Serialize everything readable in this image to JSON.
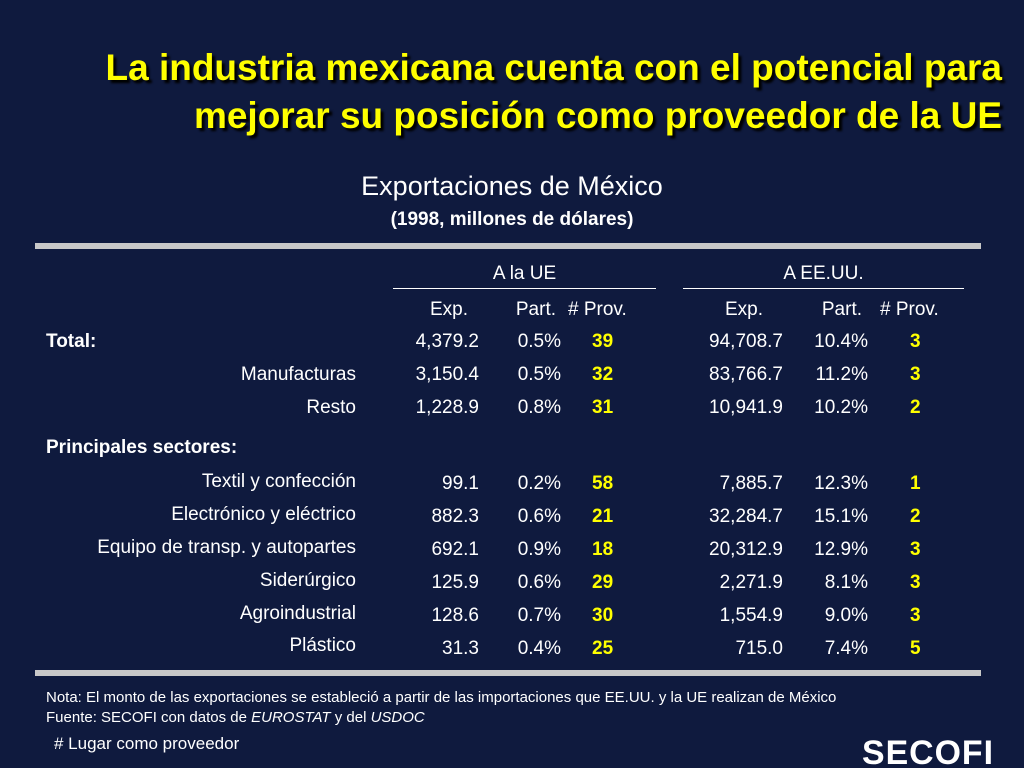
{
  "title": {
    "line1": "La industria mexicana cuenta con el potencial para",
    "line2": "mejorar su posición como proveedor de la UE"
  },
  "subtitle": "Exportaciones de México",
  "subtitle_units": "(1998, millones de dólares)",
  "groups": {
    "ue": "A la UE",
    "eeuu": "A EE.UU."
  },
  "columns": {
    "exp": "Exp.",
    "part": "Part.",
    "prov": "# Prov."
  },
  "sections": {
    "total": "Total:",
    "principales": "Principales sectores:"
  },
  "rows": [
    {
      "label": "Total:",
      "ue_exp": "4,379.2",
      "ue_part": "0.5%",
      "ue_prov": "39",
      "us_exp": "94,708.7",
      "us_part": "10.4%",
      "us_prov": "3"
    },
    {
      "label": "Manufacturas",
      "ue_exp": "3,150.4",
      "ue_part": "0.5%",
      "ue_prov": "32",
      "us_exp": "83,766.7",
      "us_part": "11.2%",
      "us_prov": "3"
    },
    {
      "label": "Resto",
      "ue_exp": "1,228.9",
      "ue_part": "0.8%",
      "ue_prov": "31",
      "us_exp": "10,941.9",
      "us_part": "10.2%",
      "us_prov": "2"
    },
    {
      "label": "Textil y confección",
      "ue_exp": "99.1",
      "ue_part": "0.2%",
      "ue_prov": "58",
      "us_exp": "7,885.7",
      "us_part": "12.3%",
      "us_prov": "1"
    },
    {
      "label": "Electrónico  y eléctrico",
      "ue_exp": "882.3",
      "ue_part": "0.6%",
      "ue_prov": "21",
      "us_exp": "32,284.7",
      "us_part": "15.1%",
      "us_prov": "2"
    },
    {
      "label": "Equipo de transp. y autopartes",
      "ue_exp": "692.1",
      "ue_part": "0.9%",
      "ue_prov": "18",
      "us_exp": "20,312.9",
      "us_part": "12.9%",
      "us_prov": "3"
    },
    {
      "label": "Siderúrgico",
      "ue_exp": "125.9",
      "ue_part": "0.6%",
      "ue_prov": "29",
      "us_exp": "2,271.9",
      "us_part": "8.1%",
      "us_prov": "3"
    },
    {
      "label": "Agroindustrial",
      "ue_exp": "128.6",
      "ue_part": "0.7%",
      "ue_prov": "30",
      "us_exp": "1,554.9",
      "us_part": "9.0%",
      "us_prov": "3"
    },
    {
      "label": "Plástico",
      "ue_exp": "31.3",
      "ue_part": "0.4%",
      "ue_prov": "25",
      "us_exp": "715.0",
      "us_part": "7.4%",
      "us_prov": "5"
    }
  ],
  "notes": {
    "nota": "Nota: El monto de  las exportaciones se estableció a partir de las importaciones que EE.UU. y la UE realizan de México",
    "fuente_prefix": "Fuente: SECOFI con datos de ",
    "fuente_src1": "EUROSTAT",
    "fuente_mid": " y del ",
    "fuente_src2": "USDOC",
    "legend": "# Lugar como proveedor"
  },
  "logo_text": "SECOFI",
  "colors": {
    "background": "#0f1a3e",
    "title": "#ffff00",
    "accent": "#ffff00",
    "rule": "#c8c8c8"
  }
}
